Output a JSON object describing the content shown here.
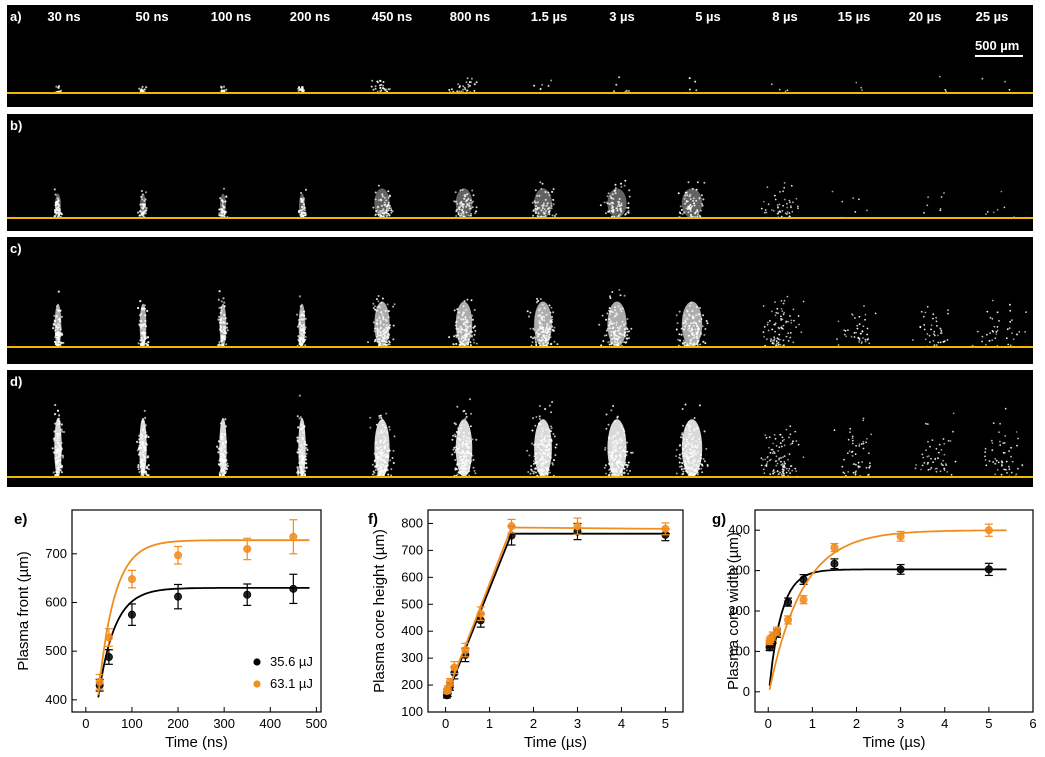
{
  "strip_panels": [
    {
      "label": "a)",
      "intensity": 0.18
    },
    {
      "label": "b)",
      "intensity": 0.45
    },
    {
      "label": "c)",
      "intensity": 0.8
    },
    {
      "label": "d)",
      "intensity": 1.0
    }
  ],
  "time_labels": [
    "30 ns",
    "50 ns",
    "100 ns",
    "200 ns",
    "450 ns",
    "800 ns",
    "1.5 µs",
    "3 µs",
    "5 µs",
    "8 µs",
    "15 µs",
    "20 µs",
    "25 µs"
  ],
  "scale_bar_label": "500 µm",
  "colors": {
    "black_series": "#000000",
    "orange_series": "#f28c1c",
    "reference_line": "#f2b705",
    "strip_bg": "#000000",
    "plasma": "#ffffff"
  },
  "chart_data": [
    {
      "panel_label": "e)",
      "type": "scatter",
      "xlabel": "Time (ns)",
      "ylabel": "Plasma front (µm)",
      "xlim": [
        -30,
        510
      ],
      "ylim": [
        375,
        790
      ],
      "xticks": [
        0,
        100,
        200,
        300,
        400,
        500
      ],
      "yticks": [
        400,
        500,
        600,
        700
      ],
      "legend_position": "bottom-right",
      "series": [
        {
          "name": "35.6 µJ",
          "color": "#000000",
          "x": [
            30,
            50,
            100,
            200,
            350,
            450
          ],
          "y": [
            430,
            488,
            575,
            612,
            616,
            628
          ],
          "err": [
            12,
            15,
            22,
            25,
            22,
            30
          ],
          "fit": {
            "type": "saturating",
            "x0": 27,
            "x_end": 485,
            "y0": 405,
            "ymax": 630,
            "tau": 35
          }
        },
        {
          "name": "63.1 µJ",
          "color": "#f28c1c",
          "x": [
            30,
            50,
            100,
            200,
            350,
            450
          ],
          "y": [
            437,
            528,
            648,
            697,
            710,
            735
          ],
          "err": [
            15,
            18,
            18,
            18,
            22,
            35
          ],
          "fit": {
            "type": "saturating",
            "x0": 27,
            "x_end": 485,
            "y0": 410,
            "ymax": 728,
            "tau": 35
          }
        }
      ]
    },
    {
      "panel_label": "f)",
      "type": "scatter",
      "xlabel": "Time (µs)",
      "ylabel": "Plasma core height (µm)",
      "xlim": [
        -0.4,
        5.4
      ],
      "ylim": [
        100,
        850
      ],
      "xticks": [
        0,
        1,
        2,
        3,
        4,
        5
      ],
      "yticks": [
        100,
        200,
        300,
        400,
        500,
        600,
        700,
        800
      ],
      "series": [
        {
          "name": "35.6 µJ",
          "color": "#000000",
          "x": [
            0.03,
            0.05,
            0.1,
            0.2,
            0.45,
            0.8,
            1.5,
            3,
            5
          ],
          "y": [
            162,
            170,
            195,
            245,
            312,
            440,
            755,
            770,
            758
          ],
          "err": [
            10,
            12,
            14,
            22,
            25,
            25,
            35,
            30,
            22
          ],
          "fit": {
            "type": "piecewise",
            "points": [
              [
                0.03,
                162
              ],
              [
                1.5,
                762
              ],
              [
                5.1,
                762
              ]
            ]
          }
        },
        {
          "name": "63.1 µJ",
          "color": "#f28c1c",
          "x": [
            0.03,
            0.05,
            0.1,
            0.2,
            0.45,
            0.8,
            1.5,
            3,
            5
          ],
          "y": [
            178,
            185,
            210,
            265,
            330,
            465,
            790,
            790,
            780
          ],
          "err": [
            10,
            12,
            14,
            22,
            25,
            25,
            25,
            30,
            22
          ],
          "fit": {
            "type": "piecewise",
            "points": [
              [
                0.03,
                170
              ],
              [
                1.5,
                785
              ],
              [
                5.1,
                780
              ]
            ]
          }
        }
      ]
    },
    {
      "panel_label": "g)",
      "type": "scatter",
      "xlabel": "Time (µs)",
      "ylabel": "Plasma core width (µm)",
      "xlim": [
        -0.3,
        6
      ],
      "ylim": [
        -50,
        450
      ],
      "xticks": [
        0,
        1,
        2,
        3,
        4,
        5,
        6
      ],
      "yticks": [
        0,
        100,
        200,
        300,
        400
      ],
      "series": [
        {
          "name": "35.6 µJ",
          "color": "#000000",
          "x": [
            0.03,
            0.05,
            0.1,
            0.2,
            0.45,
            0.8,
            1.5,
            3,
            5
          ],
          "y": [
            110,
            118,
            130,
            145,
            222,
            278,
            317,
            303,
            303
          ],
          "err": [
            8,
            8,
            10,
            10,
            10,
            12,
            12,
            12,
            15
          ],
          "fit": {
            "type": "saturating",
            "x0": 0.03,
            "x_end": 5.4,
            "y0": 15,
            "ymax": 303,
            "tau": 0.28
          }
        },
        {
          "name": "63.1 µJ",
          "color": "#f28c1c",
          "x": [
            0.03,
            0.05,
            0.1,
            0.2,
            0.45,
            0.8,
            1.5,
            3,
            5
          ],
          "y": [
            125,
            130,
            138,
            150,
            178,
            228,
            357,
            385,
            400
          ],
          "err": [
            8,
            8,
            10,
            10,
            10,
            10,
            10,
            12,
            15
          ],
          "fit": {
            "type": "saturating",
            "x0": 0.03,
            "x_end": 5.4,
            "y0": 5,
            "ymax": 400,
            "tau": 0.75
          }
        }
      ]
    }
  ]
}
